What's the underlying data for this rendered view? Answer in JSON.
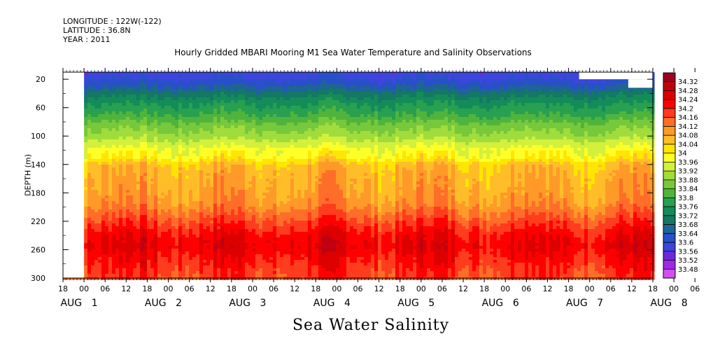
{
  "header": {
    "longitude": "LONGITUDE : 122W(-122)",
    "latitude": "LATITUDE : 36.8N",
    "year": "YEAR : 2011"
  },
  "chart_data": {
    "type": "heatmap",
    "title": "Hourly Gridded MBARI Mooring M1 Sea Water Temperature and Salinity Observations",
    "xlabel": "Sea Water Salinity",
    "ylabel": "DEPTH (m)",
    "y_range": [
      300,
      10
    ],
    "y_ticks": [
      20,
      60,
      100,
      140,
      180,
      220,
      260,
      300
    ],
    "x_range_hours": [
      -9,
      159
    ],
    "hour_ticks": [
      "18",
      "00",
      "06",
      "12",
      "18",
      "00",
      "06",
      "12",
      "18",
      "00",
      "06",
      "12",
      "18",
      "00",
      "06",
      "12",
      "18",
      "00",
      "06",
      "12",
      "18",
      "00",
      "06",
      "12",
      "18",
      "00",
      "06",
      "12",
      "18",
      "00",
      "06",
      "12"
    ],
    "date_labels": [
      "AUG 1",
      "AUG 2",
      "AUG 3",
      "AUG 4",
      "AUG 5",
      "AUG 6",
      "AUG 7",
      "AUG 8"
    ],
    "colorbar_levels": [
      "34.32",
      "34.28",
      "34.24",
      "34.2",
      "34.16",
      "34.12",
      "34.08",
      "34.04",
      "34",
      "33.96",
      "33.92",
      "33.88",
      "33.84",
      "33.8",
      "33.76",
      "33.72",
      "33.68",
      "33.64",
      "33.6",
      "33.56",
      "33.52",
      "33.48"
    ],
    "colorbar_colors": [
      "#a00020",
      "#c00010",
      "#dc0000",
      "#ff0000",
      "#ff3c1e",
      "#ff6e28",
      "#ff9a28",
      "#ffbe28",
      "#ffe600",
      "#ffff28",
      "#d2f03c",
      "#a0dc3c",
      "#78c83c",
      "#50b43c",
      "#28a050",
      "#148c5a",
      "#147864",
      "#1e6496",
      "#2850c8",
      "#3c46dc",
      "#6e28dc",
      "#a028e6",
      "#d250f0"
    ],
    "depth_profile": {
      "depths": [
        10,
        20,
        30,
        40,
        55,
        70,
        85,
        100,
        110,
        120,
        130,
        140,
        155,
        175,
        195,
        210,
        225,
        240,
        255,
        270,
        285,
        300
      ],
      "salinity": [
        33.58,
        33.6,
        33.64,
        33.7,
        33.76,
        33.8,
        33.86,
        33.9,
        33.94,
        33.98,
        34.0,
        34.06,
        34.08,
        34.09,
        34.11,
        34.15,
        34.19,
        34.23,
        34.25,
        34.22,
        34.2,
        34.18
      ]
    },
    "no_data": [
      {
        "x_hours": [
          -9,
          -3
        ],
        "depth": [
          10,
          300
        ]
      },
      {
        "x_hours": [
          138,
          159
        ],
        "depth": [
          10,
          20
        ]
      },
      {
        "x_hours": [
          152,
          159
        ],
        "depth": [
          20,
          32
        ]
      }
    ]
  }
}
